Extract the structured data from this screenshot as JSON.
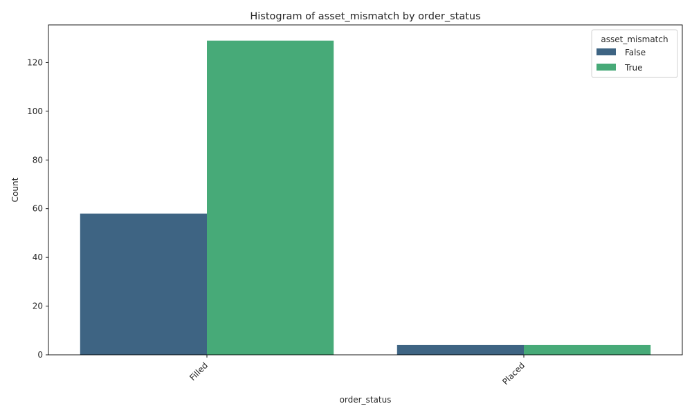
{
  "chart_data": {
    "type": "bar",
    "title": "Histogram of asset_mismatch by order_status",
    "xlabel": "order_status",
    "ylabel": "Count",
    "categories": [
      "Filled",
      "Placed"
    ],
    "series": [
      {
        "name": "False",
        "values": [
          58,
          4
        ],
        "color": "#3e6483"
      },
      {
        "name": "True",
        "values": [
          129,
          4
        ],
        "color": "#47aa78"
      }
    ],
    "ylim": [
      0,
      135.45
    ],
    "yticks": [
      0,
      20,
      40,
      60,
      80,
      100,
      120
    ],
    "grid": false,
    "legend": {
      "title": "asset_mismatch",
      "placement": "top-right"
    },
    "x_tick_rotation": 45
  }
}
